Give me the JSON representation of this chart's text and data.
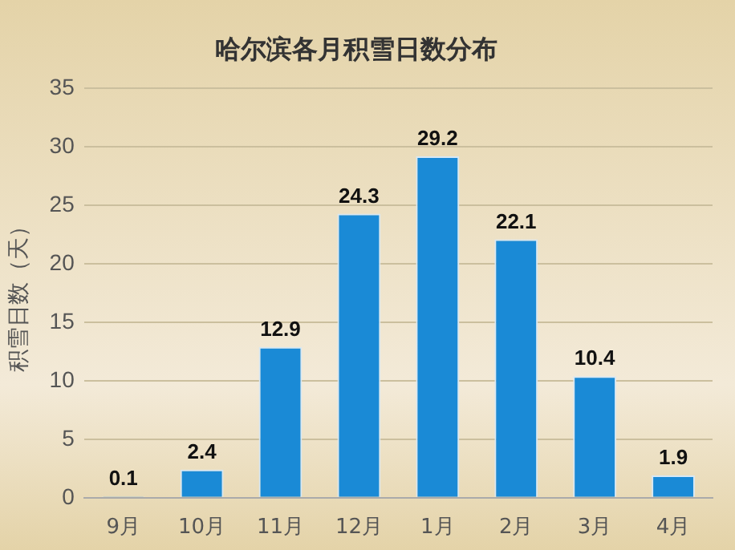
{
  "chart_data": {
    "type": "bar",
    "title": "哈尔滨各月积雪日数分布",
    "ylabel": "积雪日数（天）",
    "categories": [
      "9月",
      "10月",
      "11月",
      "12月",
      "1月",
      "2月",
      "3月",
      "4月"
    ],
    "values": [
      0.1,
      2.4,
      12.9,
      24.3,
      29.2,
      22.1,
      10.4,
      1.9
    ],
    "color": "#1a8ad6",
    "ylim": [
      0,
      35
    ],
    "yticks": [
      0,
      5,
      10,
      15,
      20,
      25,
      30,
      35
    ],
    "grid": "y",
    "data_labels": true
  }
}
